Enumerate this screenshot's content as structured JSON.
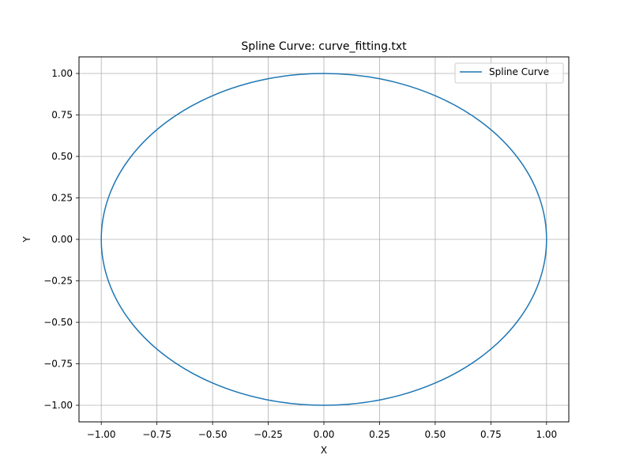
{
  "chart_data": {
    "type": "line",
    "title": "Spline Curve: curve_fitting.txt",
    "xlabel": "X",
    "ylabel": "Y",
    "xlim": [
      -1.1,
      1.1
    ],
    "ylim": [
      -1.1,
      1.1
    ],
    "xticks": [
      -1.0,
      -0.75,
      -0.5,
      -0.25,
      0.0,
      0.25,
      0.5,
      0.75,
      1.0
    ],
    "yticks": [
      -1.0,
      -0.75,
      -0.5,
      -0.25,
      0.0,
      0.25,
      0.5,
      0.75,
      1.0
    ],
    "xtick_labels": [
      "−1.00",
      "−0.75",
      "−0.50",
      "−0.25",
      "0.00",
      "0.25",
      "0.50",
      "0.75",
      "1.00"
    ],
    "ytick_labels": [
      "−1.00",
      "−0.75",
      "−0.50",
      "−0.25",
      "0.00",
      "0.25",
      "0.50",
      "0.75",
      "1.00"
    ],
    "grid": true,
    "legend_position": "top-right",
    "series": [
      {
        "name": "Spline Curve",
        "color": "#1f77b4",
        "x": [
          1.0,
          0.9659,
          0.866,
          0.7071,
          0.5,
          0.2588,
          0.0,
          -0.2588,
          -0.5,
          -0.7071,
          -0.866,
          -0.9659,
          -1.0,
          -0.9659,
          -0.866,
          -0.7071,
          -0.5,
          -0.2588,
          0.0,
          0.2588,
          0.5,
          0.7071,
          0.866,
          0.9659,
          1.0
        ],
        "y": [
          0.0,
          0.2588,
          0.5,
          0.7071,
          0.866,
          0.9659,
          1.0,
          0.9659,
          0.866,
          0.7071,
          0.5,
          0.2588,
          0.0,
          -0.2588,
          -0.5,
          -0.7071,
          -0.866,
          -0.9659,
          -1.0,
          -0.9659,
          -0.866,
          -0.7071,
          -0.5,
          -0.2588,
          0.0
        ]
      }
    ]
  }
}
